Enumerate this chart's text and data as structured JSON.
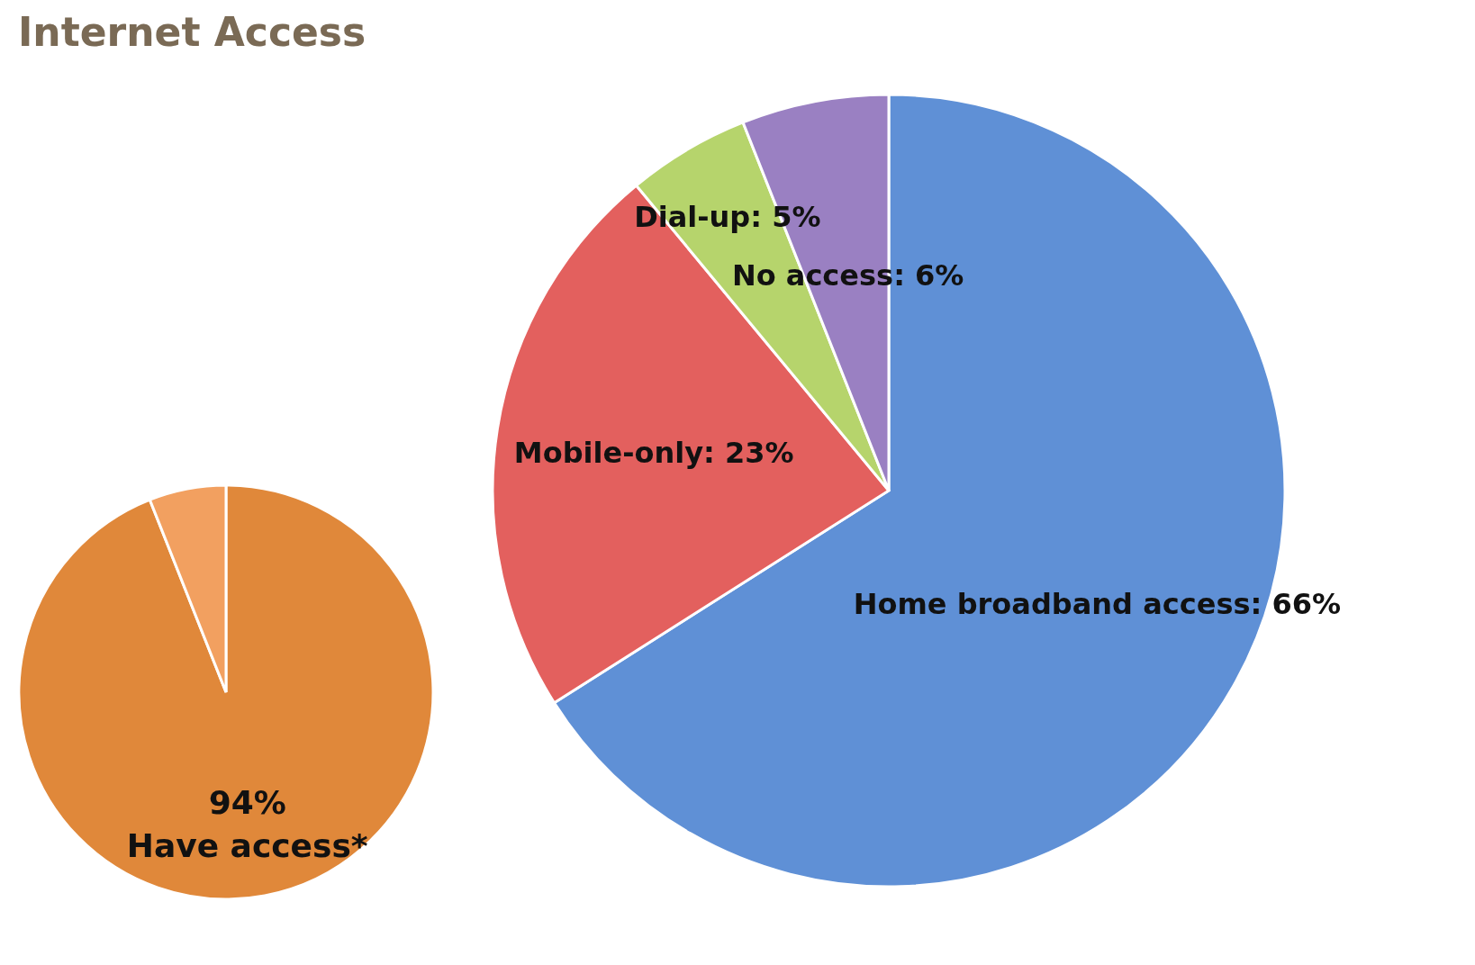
{
  "chart_data": [
    {
      "type": "pie",
      "title": "Internet Access",
      "categories": [
        "Have access*",
        null
      ],
      "values": [
        94,
        6
      ],
      "colors": [
        "#e0883a",
        "#f2a060"
      ],
      "value_labels": [
        "94%",
        null
      ]
    },
    {
      "type": "pie",
      "categories": [
        "Home broadband access",
        "Mobile-only",
        "Dial-up",
        "No access"
      ],
      "values": [
        66,
        23,
        5,
        6
      ],
      "colors": [
        "#5f90d6",
        "#e3605e",
        "#b6d46c",
        "#9a80c2"
      ],
      "value_labels": [
        "66%",
        "23%",
        "5%",
        "6%"
      ]
    }
  ]
}
